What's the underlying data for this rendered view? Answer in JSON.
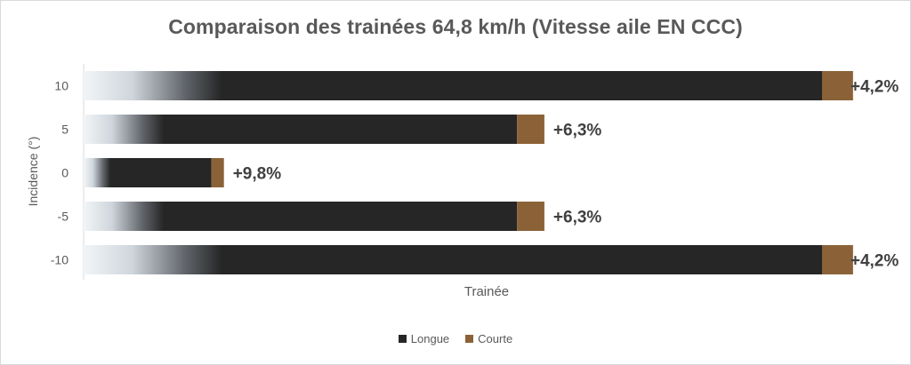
{
  "chart_data": {
    "type": "bar",
    "orientation": "horizontal",
    "stacked": true,
    "title": "Comparaison des trainées 64,8 km/h (Vitesse aile EN CCC)",
    "xlabel": "Trainée",
    "ylabel": "Incidence (°)",
    "categories": [
      "10",
      "5",
      "0",
      "-5",
      "-10"
    ],
    "series": [
      {
        "name": "Longue",
        "color": "#262626",
        "values": [
          100,
          58.7,
          17.3,
          58.7,
          100
        ]
      },
      {
        "name": "Courte",
        "color": "#8b6237",
        "values": [
          4.2,
          3.7,
          1.7,
          3.7,
          4.2
        ]
      }
    ],
    "annotations": [
      "+4,2%",
      "+6,3%",
      "+9,8%",
      "+6,3%",
      "+4,2%"
    ],
    "legend_position": "bottom",
    "grid": false
  }
}
